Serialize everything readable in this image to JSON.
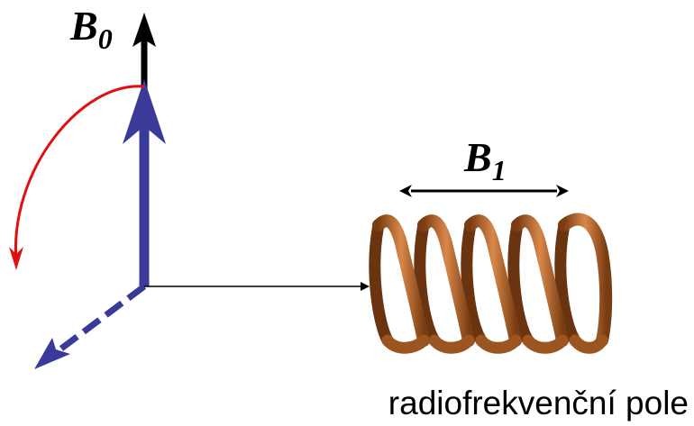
{
  "labels": {
    "b0": {
      "symbol": "B",
      "subscript": "0"
    },
    "b1": {
      "symbol": "B",
      "subscript": "1"
    },
    "caption": "radiofrekvenční pole"
  }
}
